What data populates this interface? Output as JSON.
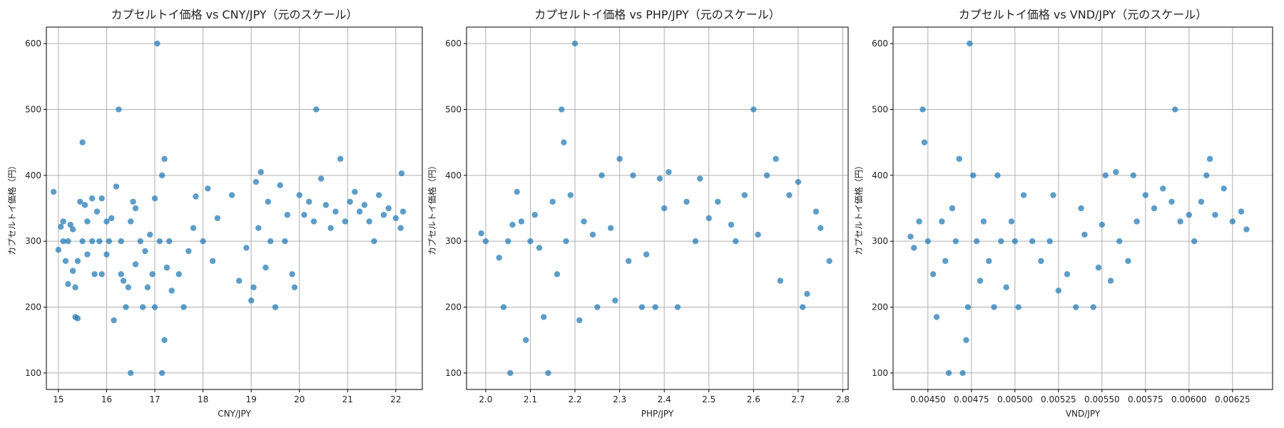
{
  "chart_data": [
    {
      "type": "scatter",
      "title": "カプセルトイ価格 vs CNY/JPY（元のスケール）",
      "xlabel": "CNY/JPY",
      "ylabel": "カプセルトイ価格（円）",
      "xlim": [
        14.75,
        22.55
      ],
      "ylim": [
        75,
        625
      ],
      "xticks": [
        15,
        16,
        17,
        18,
        19,
        20,
        21,
        22
      ],
      "xtick_labels": [
        "15",
        "16",
        "17",
        "18",
        "19",
        "20",
        "21",
        "22"
      ],
      "yticks": [
        100,
        200,
        300,
        400,
        500,
        600
      ],
      "ytick_labels": [
        "100",
        "200",
        "300",
        "400",
        "500",
        "600"
      ],
      "grid": true,
      "points": [
        [
          14.9,
          375
        ],
        [
          15.0,
          287
        ],
        [
          15.05,
          322
        ],
        [
          15.1,
          330
        ],
        [
          15.1,
          300
        ],
        [
          15.15,
          270
        ],
        [
          15.2,
          235
        ],
        [
          15.2,
          300
        ],
        [
          15.25,
          325
        ],
        [
          15.3,
          255
        ],
        [
          15.3,
          318
        ],
        [
          15.35,
          230
        ],
        [
          15.35,
          185
        ],
        [
          15.4,
          183
        ],
        [
          15.4,
          270
        ],
        [
          15.45,
          360
        ],
        [
          15.5,
          450
        ],
        [
          15.5,
          300
        ],
        [
          15.55,
          355
        ],
        [
          15.6,
          330
        ],
        [
          15.6,
          280
        ],
        [
          15.7,
          365
        ],
        [
          15.7,
          300
        ],
        [
          15.75,
          250
        ],
        [
          15.8,
          345
        ],
        [
          15.85,
          300
        ],
        [
          15.9,
          365
        ],
        [
          15.9,
          250
        ],
        [
          16.0,
          330
        ],
        [
          16.0,
          280
        ],
        [
          16.05,
          300
        ],
        [
          16.1,
          335
        ],
        [
          16.15,
          180
        ],
        [
          16.2,
          383
        ],
        [
          16.25,
          500
        ],
        [
          16.3,
          300
        ],
        [
          16.3,
          250
        ],
        [
          16.35,
          240
        ],
        [
          16.4,
          200
        ],
        [
          16.45,
          230
        ],
        [
          16.5,
          330
        ],
        [
          16.5,
          100
        ],
        [
          16.55,
          360
        ],
        [
          16.6,
          350
        ],
        [
          16.6,
          265
        ],
        [
          16.7,
          300
        ],
        [
          16.75,
          200
        ],
        [
          16.8,
          285
        ],
        [
          16.85,
          230
        ],
        [
          16.9,
          310
        ],
        [
          16.95,
          250
        ],
        [
          17.0,
          365
        ],
        [
          17.0,
          200
        ],
        [
          17.05,
          600
        ],
        [
          17.1,
          300
        ],
        [
          17.15,
          400
        ],
        [
          17.15,
          100
        ],
        [
          17.2,
          425
        ],
        [
          17.2,
          150
        ],
        [
          17.25,
          260
        ],
        [
          17.3,
          300
        ],
        [
          17.35,
          225
        ],
        [
          17.5,
          250
        ],
        [
          17.6,
          200
        ],
        [
          17.7,
          285
        ],
        [
          17.8,
          320
        ],
        [
          17.85,
          368
        ],
        [
          18.0,
          300
        ],
        [
          18.1,
          380
        ],
        [
          18.2,
          270
        ],
        [
          18.3,
          335
        ],
        [
          18.6,
          370
        ],
        [
          18.75,
          240
        ],
        [
          18.9,
          290
        ],
        [
          19.0,
          210
        ],
        [
          19.05,
          230
        ],
        [
          19.1,
          390
        ],
        [
          19.15,
          320
        ],
        [
          19.2,
          405
        ],
        [
          19.3,
          260
        ],
        [
          19.35,
          360
        ],
        [
          19.4,
          300
        ],
        [
          19.5,
          200
        ],
        [
          19.6,
          385
        ],
        [
          19.7,
          300
        ],
        [
          19.75,
          340
        ],
        [
          19.85,
          250
        ],
        [
          19.9,
          230
        ],
        [
          20.0,
          370
        ],
        [
          20.1,
          340
        ],
        [
          20.2,
          360
        ],
        [
          20.3,
          330
        ],
        [
          20.35,
          500
        ],
        [
          20.45,
          395
        ],
        [
          20.55,
          355
        ],
        [
          20.65,
          320
        ],
        [
          20.75,
          345
        ],
        [
          20.85,
          425
        ],
        [
          20.95,
          330
        ],
        [
          21.05,
          360
        ],
        [
          21.15,
          375
        ],
        [
          21.25,
          345
        ],
        [
          21.35,
          355
        ],
        [
          21.45,
          330
        ],
        [
          21.55,
          300
        ],
        [
          21.65,
          370
        ],
        [
          21.75,
          340
        ],
        [
          21.85,
          350
        ],
        [
          22.0,
          335
        ],
        [
          22.1,
          320
        ],
        [
          22.12,
          403
        ],
        [
          22.15,
          345
        ]
      ]
    },
    {
      "type": "scatter",
      "title": "カプセルトイ価格 vs PHP/JPY（元のスケール）",
      "xlabel": "PHP/JPY",
      "ylabel": "カプセルトイ価格（円）",
      "xlim": [
        1.957,
        2.812
      ],
      "ylim": [
        75,
        625
      ],
      "xticks": [
        2.0,
        2.1,
        2.2,
        2.3,
        2.4,
        2.5,
        2.6,
        2.7,
        2.8
      ],
      "xtick_labels": [
        "2.0",
        "2.1",
        "2.2",
        "2.3",
        "2.4",
        "2.5",
        "2.6",
        "2.7",
        "2.8"
      ],
      "yticks": [
        100,
        200,
        300,
        400,
        500,
        600
      ],
      "ytick_labels": [
        "100",
        "200",
        "300",
        "400",
        "500",
        "600"
      ],
      "grid": true,
      "points": [
        [
          1.99,
          312
        ],
        [
          2.0,
          300
        ],
        [
          2.03,
          275
        ],
        [
          2.04,
          200
        ],
        [
          2.05,
          300
        ],
        [
          2.055,
          100
        ],
        [
          2.06,
          325
        ],
        [
          2.07,
          375
        ],
        [
          2.08,
          330
        ],
        [
          2.09,
          150
        ],
        [
          2.1,
          300
        ],
        [
          2.11,
          340
        ],
        [
          2.12,
          290
        ],
        [
          2.13,
          185
        ],
        [
          2.14,
          100
        ],
        [
          2.15,
          360
        ],
        [
          2.16,
          250
        ],
        [
          2.17,
          500
        ],
        [
          2.175,
          450
        ],
        [
          2.18,
          300
        ],
        [
          2.19,
          370
        ],
        [
          2.2,
          600
        ],
        [
          2.21,
          180
        ],
        [
          2.22,
          330
        ],
        [
          2.24,
          310
        ],
        [
          2.25,
          200
        ],
        [
          2.26,
          400
        ],
        [
          2.28,
          320
        ],
        [
          2.29,
          210
        ],
        [
          2.3,
          425
        ],
        [
          2.32,
          270
        ],
        [
          2.33,
          400
        ],
        [
          2.35,
          200
        ],
        [
          2.36,
          280
        ],
        [
          2.38,
          200
        ],
        [
          2.39,
          395
        ],
        [
          2.4,
          350
        ],
        [
          2.41,
          405
        ],
        [
          2.43,
          200
        ],
        [
          2.45,
          360
        ],
        [
          2.47,
          300
        ],
        [
          2.48,
          395
        ],
        [
          2.5,
          335
        ],
        [
          2.52,
          360
        ],
        [
          2.55,
          325
        ],
        [
          2.56,
          300
        ],
        [
          2.58,
          370
        ],
        [
          2.6,
          500
        ],
        [
          2.61,
          310
        ],
        [
          2.63,
          400
        ],
        [
          2.65,
          425
        ],
        [
          2.66,
          240
        ],
        [
          2.68,
          370
        ],
        [
          2.7,
          390
        ],
        [
          2.71,
          200
        ],
        [
          2.72,
          220
        ],
        [
          2.74,
          345
        ],
        [
          2.75,
          320
        ],
        [
          2.77,
          270
        ]
      ]
    },
    {
      "type": "scatter",
      "title": "カプセルトイ価格 vs VND/JPY（元のスケール）",
      "xlabel": "VND/JPY",
      "ylabel": "カプセルトイ価格（円）",
      "xlim": [
        0.0043,
        0.00648
      ],
      "ylim": [
        75,
        625
      ],
      "xticks": [
        0.0045,
        0.00475,
        0.005,
        0.00525,
        0.0055,
        0.00575,
        0.006,
        0.00625
      ],
      "xtick_labels": [
        "0.00450",
        "0.00475",
        "0.00500",
        "0.00525",
        "0.00550",
        "0.00575",
        "0.00600",
        "0.00625"
      ],
      "yticks": [
        100,
        200,
        300,
        400,
        500,
        600
      ],
      "ytick_labels": [
        "100",
        "200",
        "300",
        "400",
        "500",
        "600"
      ],
      "grid": true,
      "points": [
        [
          0.0044,
          307
        ],
        [
          0.00442,
          290
        ],
        [
          0.00445,
          330
        ],
        [
          0.00447,
          500
        ],
        [
          0.00448,
          450
        ],
        [
          0.0045,
          300
        ],
        [
          0.00453,
          250
        ],
        [
          0.00455,
          185
        ],
        [
          0.00458,
          330
        ],
        [
          0.0046,
          270
        ],
        [
          0.00462,
          100
        ],
        [
          0.00464,
          350
        ],
        [
          0.00466,
          300
        ],
        [
          0.00468,
          425
        ],
        [
          0.0047,
          100
        ],
        [
          0.00472,
          150
        ],
        [
          0.00473,
          200
        ],
        [
          0.00474,
          600
        ],
        [
          0.00476,
          400
        ],
        [
          0.00478,
          300
        ],
        [
          0.0048,
          240
        ],
        [
          0.00482,
          330
        ],
        [
          0.00485,
          270
        ],
        [
          0.00488,
          200
        ],
        [
          0.0049,
          400
        ],
        [
          0.00492,
          300
        ],
        [
          0.00495,
          230
        ],
        [
          0.00498,
          330
        ],
        [
          0.005,
          300
        ],
        [
          0.00502,
          200
        ],
        [
          0.00505,
          370
        ],
        [
          0.0051,
          300
        ],
        [
          0.00515,
          270
        ],
        [
          0.0052,
          300
        ],
        [
          0.00522,
          370
        ],
        [
          0.00525,
          225
        ],
        [
          0.0053,
          250
        ],
        [
          0.00535,
          200
        ],
        [
          0.00538,
          350
        ],
        [
          0.0054,
          310
        ],
        [
          0.00545,
          200
        ],
        [
          0.00548,
          260
        ],
        [
          0.0055,
          325
        ],
        [
          0.00552,
          400
        ],
        [
          0.00555,
          240
        ],
        [
          0.00558,
          405
        ],
        [
          0.0056,
          300
        ],
        [
          0.00565,
          270
        ],
        [
          0.00568,
          400
        ],
        [
          0.0057,
          330
        ],
        [
          0.00575,
          370
        ],
        [
          0.0058,
          350
        ],
        [
          0.00585,
          380
        ],
        [
          0.0059,
          360
        ],
        [
          0.00592,
          500
        ],
        [
          0.00595,
          330
        ],
        [
          0.006,
          340
        ],
        [
          0.00603,
          300
        ],
        [
          0.00607,
          360
        ],
        [
          0.0061,
          400
        ],
        [
          0.00612,
          425
        ],
        [
          0.00615,
          340
        ],
        [
          0.0062,
          380
        ],
        [
          0.00625,
          330
        ],
        [
          0.0063,
          345
        ],
        [
          0.00633,
          318
        ]
      ]
    }
  ]
}
